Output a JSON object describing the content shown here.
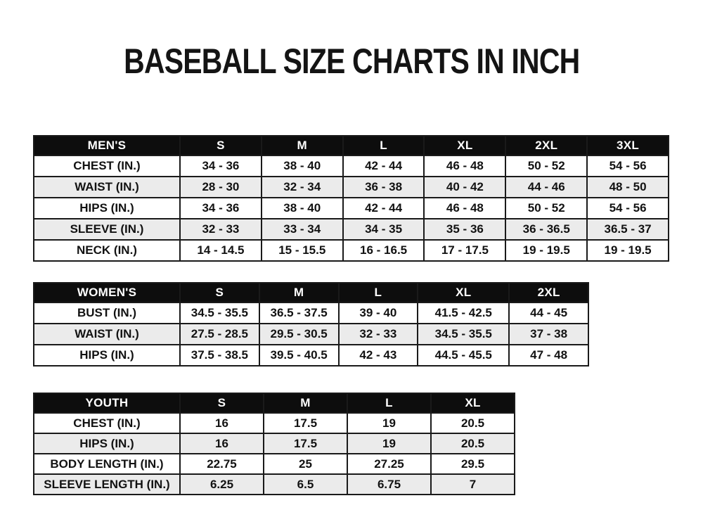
{
  "page": {
    "title": "BASEBALL SIZE CHARTS IN INCH"
  },
  "colors": {
    "header_bg": "#0d0d0d",
    "header_text": "#ffffff",
    "stripe": "#ebebeb",
    "border": "#1a1a1a",
    "text": "#121212"
  },
  "chart_data": [
    {
      "type": "table",
      "name": "mens",
      "title": "MEN'S",
      "columns": [
        "MEN'S",
        "S",
        "M",
        "L",
        "XL",
        "2XL",
        "3XL"
      ],
      "rows": [
        [
          "CHEST (IN.)",
          "34 - 36",
          "38 - 40",
          "42 - 44",
          "46 - 48",
          "50 - 52",
          "54 - 56"
        ],
        [
          "WAIST (IN.)",
          "28 - 30",
          "32 - 34",
          "36 - 38",
          "40 - 42",
          "44 - 46",
          "48 - 50"
        ],
        [
          "HIPS (IN.)",
          "34 - 36",
          "38 - 40",
          "42 - 44",
          "46 - 48",
          "50 - 52",
          "54 - 56"
        ],
        [
          "SLEEVE (IN.)",
          "32 - 33",
          "33 - 34",
          "34 - 35",
          "35 - 36",
          "36 - 36.5",
          "36.5 - 37"
        ],
        [
          "NECK (IN.)",
          "14 - 14.5",
          "15 - 15.5",
          "16 - 16.5",
          "17 - 17.5",
          "19 - 19.5",
          "19 - 19.5"
        ]
      ]
    },
    {
      "type": "table",
      "name": "womens",
      "title": "WOMEN'S",
      "columns": [
        "WOMEN'S",
        "S",
        "M",
        "L",
        "XL",
        "2XL"
      ],
      "rows": [
        [
          "BUST (IN.)",
          "34.5 - 35.5",
          "36.5 - 37.5",
          "39 - 40",
          "41.5 - 42.5",
          "44 - 45"
        ],
        [
          "WAIST (IN.)",
          "27.5 - 28.5",
          "29.5 - 30.5",
          "32 - 33",
          "34.5 - 35.5",
          "37 - 38"
        ],
        [
          "HIPS (IN.)",
          "37.5 - 38.5",
          "39.5 - 40.5",
          "42 - 43",
          "44.5 - 45.5",
          "47 - 48"
        ]
      ]
    },
    {
      "type": "table",
      "name": "youth",
      "title": "YOUTH",
      "columns": [
        "YOUTH",
        "S",
        "M",
        "L",
        "XL"
      ],
      "rows": [
        [
          "CHEST (IN.)",
          "16",
          "17.5",
          "19",
          "20.5"
        ],
        [
          "HIPS (IN.)",
          "16",
          "17.5",
          "19",
          "20.5"
        ],
        [
          "BODY LENGTH (IN.)",
          "22.75",
          "25",
          "27.25",
          "29.5"
        ],
        [
          "SLEEVE LENGTH (IN.)",
          "6.25",
          "6.5",
          "6.75",
          "7"
        ]
      ]
    }
  ]
}
